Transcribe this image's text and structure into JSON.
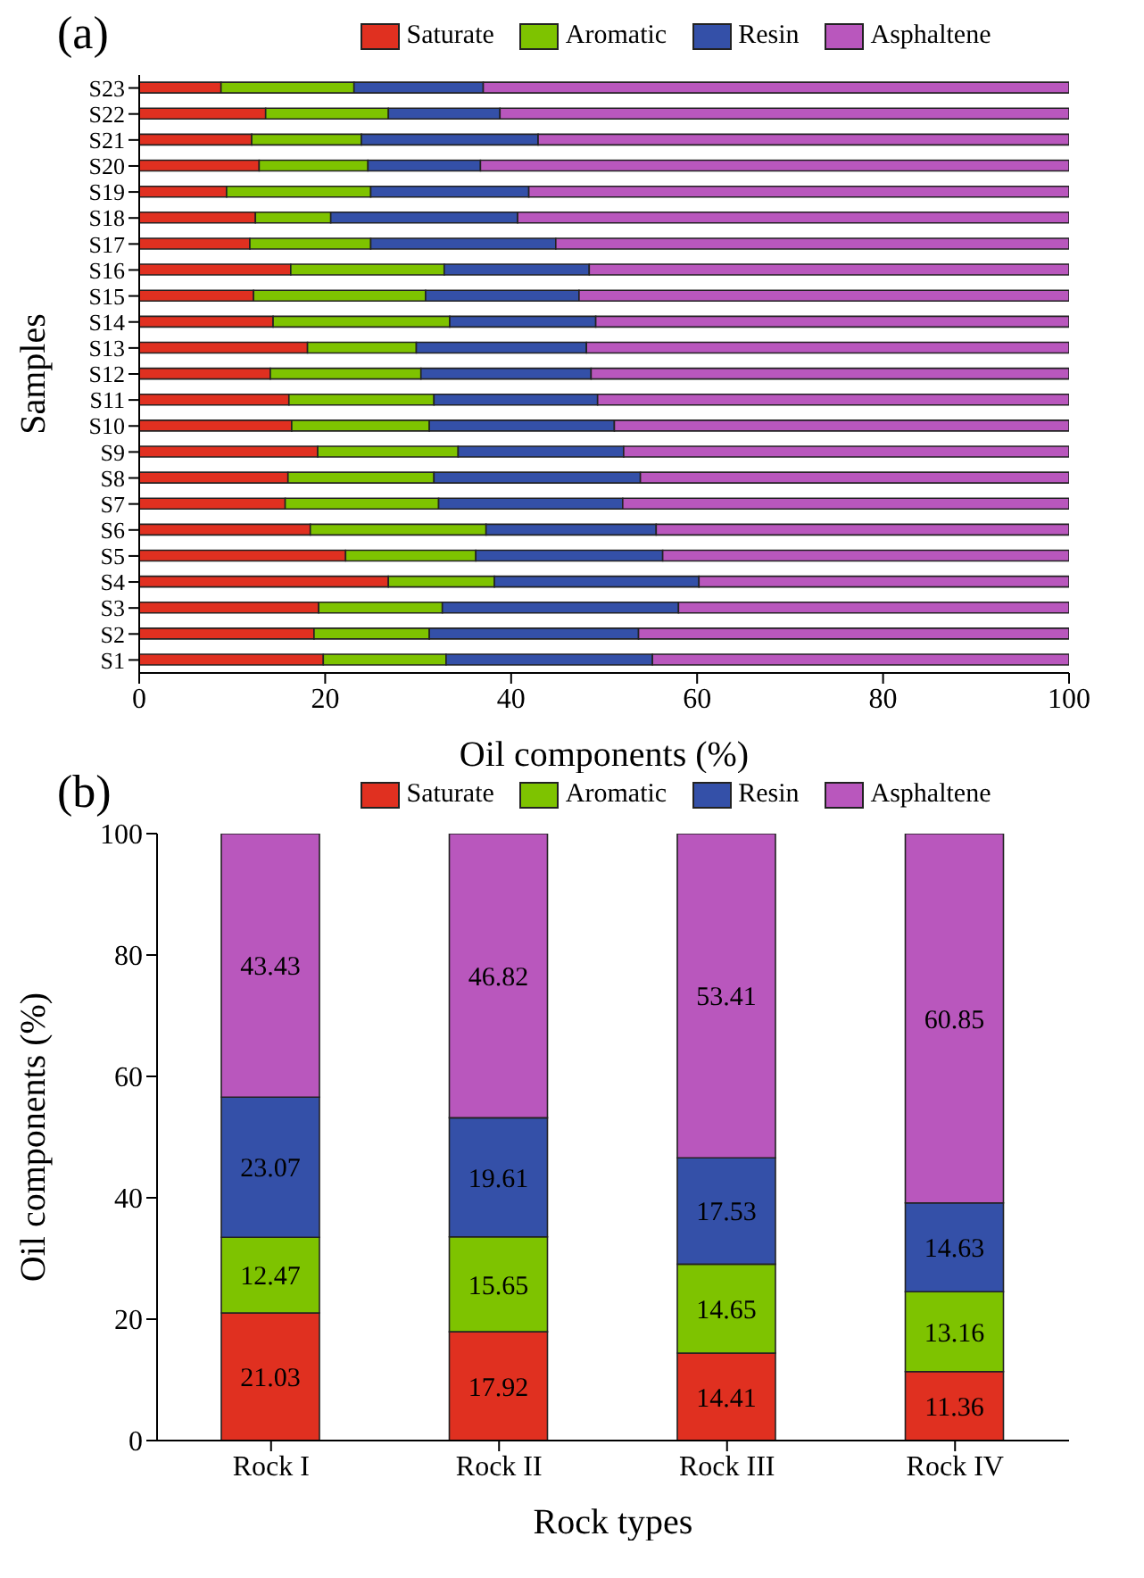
{
  "chart_data": [
    {
      "type": "bar",
      "title": "(a)",
      "orientation": "horizontal",
      "stacked": true,
      "legend": "top",
      "xlabel": "Oil components (%)",
      "ylabel": "Samples",
      "xlim": [
        0,
        100
      ],
      "xticks": [
        0,
        20,
        40,
        60,
        80,
        100
      ],
      "categories": [
        "S23",
        "S22",
        "S21",
        "S20",
        "S19",
        "S18",
        "S17",
        "S16",
        "S15",
        "S14",
        "S13",
        "S12",
        "S11",
        "S10",
        "S9",
        "S8",
        "S7",
        "S6",
        "S5",
        "S4",
        "S3",
        "S2",
        "S1"
      ],
      "series": [
        {
          "name": "Saturate",
          "color": "#e03020",
          "values": [
            8.8,
            13.6,
            12.1,
            12.9,
            9.4,
            12.5,
            11.9,
            16.3,
            12.3,
            14.4,
            18.1,
            14.1,
            16.1,
            16.4,
            19.2,
            16.0,
            15.7,
            18.4,
            22.2,
            26.8,
            19.3,
            18.8,
            19.8
          ]
        },
        {
          "name": "Aromatic",
          "color": "#7ec300",
          "values": [
            14.3,
            13.2,
            11.8,
            11.7,
            15.5,
            8.1,
            13.0,
            16.5,
            18.5,
            19.0,
            11.7,
            16.2,
            15.6,
            14.8,
            15.1,
            15.7,
            16.5,
            18.9,
            14.0,
            11.4,
            13.3,
            12.4,
            13.2
          ]
        },
        {
          "name": "Resin",
          "color": "#3450a8",
          "values": [
            13.9,
            12.0,
            19.0,
            12.1,
            17.0,
            20.1,
            19.9,
            15.6,
            16.5,
            15.7,
            18.3,
            18.3,
            17.6,
            19.9,
            17.8,
            22.2,
            19.8,
            18.3,
            20.1,
            22.0,
            25.4,
            22.5,
            22.2
          ]
        },
        {
          "name": "Asphaltene",
          "color": "#b957bd",
          "values": [
            63.0,
            61.2,
            57.1,
            63.3,
            58.1,
            59.3,
            55.2,
            51.6,
            52.7,
            50.9,
            51.9,
            51.4,
            50.7,
            48.9,
            47.9,
            46.1,
            48.0,
            44.4,
            43.7,
            39.8,
            42.0,
            46.3,
            44.8
          ]
        }
      ]
    },
    {
      "type": "bar",
      "title": "(b)",
      "stacked": true,
      "legend": "top",
      "data_labels": true,
      "xlabel": "Rock types",
      "ylabel": "Oil components (%)",
      "ylim": [
        0,
        100
      ],
      "yticks": [
        0,
        20,
        40,
        60,
        80,
        100
      ],
      "categories": [
        "Rock I",
        "Rock II",
        "Rock III",
        "Rock IV"
      ],
      "series": [
        {
          "name": "Saturate",
          "color": "#e03020",
          "values": [
            21.03,
            17.92,
            14.41,
            11.36
          ]
        },
        {
          "name": "Aromatic",
          "color": "#7ec300",
          "values": [
            12.47,
            15.65,
            14.65,
            13.16
          ]
        },
        {
          "name": "Resin",
          "color": "#3450a8",
          "values": [
            23.07,
            19.61,
            17.53,
            14.63
          ]
        },
        {
          "name": "Asphaltene",
          "color": "#b957bd",
          "values": [
            43.43,
            46.82,
            53.41,
            60.85
          ]
        }
      ]
    }
  ]
}
